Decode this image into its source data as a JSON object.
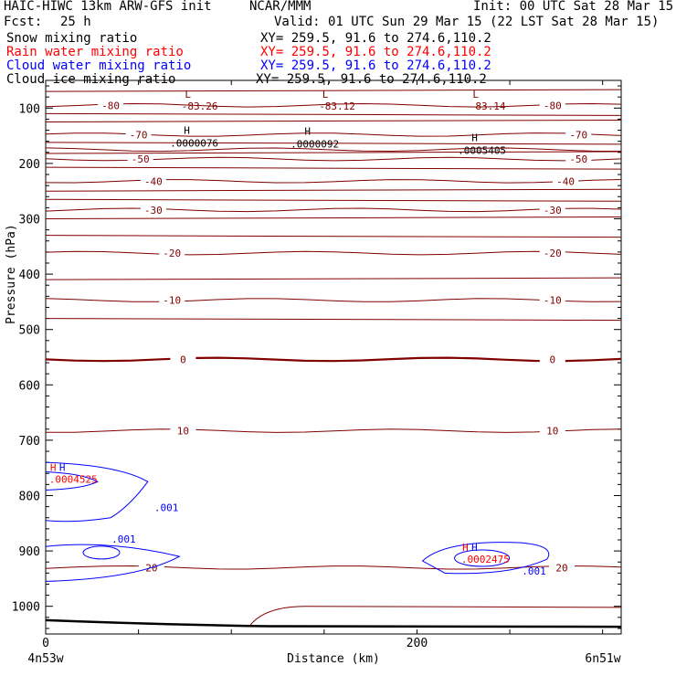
{
  "header": {
    "model": "HAIC-HIWC 13km ARW-GFS init",
    "org": "NCAR/MMM",
    "init": "Init: 00 UTC Sat 28 Mar 15",
    "fcst_label": "Fcst:",
    "fcst_value": "25 h",
    "valid": "Valid: 01 UTC Sun 29 Mar 15 (22 LST Sat 28 Mar 15)"
  },
  "fields": [
    {
      "name": "Snow mixing ratio",
      "xy": "XY= 259.5, 91.6 to 274.6,110.2",
      "color": "#000000"
    },
    {
      "name": "Rain water mixing ratio",
      "xy": "XY= 259.5, 91.6 to 274.6,110.2",
      "color": "#ff0000"
    },
    {
      "name": "Cloud water mixing ratio",
      "xy": "XY= 259.5, 91.6 to 274.6,110.2",
      "color": "#0000ff"
    },
    {
      "name": "Cloud ice mixing ratio",
      "xy": "XY= 259.5, 91.6 to 274.6,110.2",
      "color": "#000000"
    }
  ],
  "chart_data": {
    "type": "contour",
    "xlabel": "Distance (km)",
    "ylabel": "Pressure (hPa)",
    "x_range": [
      0,
      310
    ],
    "y_range": [
      50,
      1050
    ],
    "y_scale": "linear-inverted",
    "x_ticks": [
      {
        "value": 0,
        "label": "0"
      },
      {
        "value": 200,
        "label": "200"
      }
    ],
    "x_minor_step": 50,
    "y_ticks": [
      100,
      200,
      300,
      400,
      500,
      600,
      700,
      800,
      900,
      1000
    ],
    "x_end_labels": {
      "left": "4n53w",
      "right": "6n51w"
    },
    "temperature_color": "#800000",
    "cloud_color": "#0000ff",
    "temperature_contours": [
      {
        "value": -80,
        "p": 95,
        "labels": [
          {
            "text": "-80",
            "x": 35
          },
          {
            "text": "-80",
            "x": 273
          }
        ]
      },
      {
        "value": -70,
        "p": 148,
        "labels": [
          {
            "text": "-70",
            "x": 50
          },
          {
            "text": "-70",
            "x": 287
          }
        ]
      },
      {
        "value": -60,
        "p": 175,
        "labels": []
      },
      {
        "value": -50,
        "p": 192,
        "labels": [
          {
            "text": "-50",
            "x": 51
          },
          {
            "text": "-50",
            "x": 287
          }
        ]
      },
      {
        "value": -40,
        "p": 232,
        "labels": [
          {
            "text": "-40",
            "x": 58
          },
          {
            "text": "-40",
            "x": 280
          }
        ]
      },
      {
        "value": -30,
        "p": 284,
        "labels": [
          {
            "text": "-30",
            "x": 58
          },
          {
            "text": "-30",
            "x": 273
          }
        ]
      },
      {
        "value": -20,
        "p": 362,
        "labels": [
          {
            "text": "-20",
            "x": 68
          },
          {
            "text": "-20",
            "x": 273
          }
        ]
      },
      {
        "value": -10,
        "p": 447,
        "labels": [
          {
            "text": "-10",
            "x": 68
          },
          {
            "text": "-10",
            "x": 273
          }
        ]
      },
      {
        "value": 0,
        "p": 554,
        "labels": [
          {
            "text": "0",
            "x": 74
          },
          {
            "text": "0",
            "x": 273
          }
        ]
      },
      {
        "value": 10,
        "p": 683,
        "labels": [
          {
            "text": "10",
            "x": 74
          },
          {
            "text": "10",
            "x": 273
          }
        ]
      },
      {
        "value": 20,
        "p": 930,
        "labels": [
          {
            "text": "20",
            "x": 57
          },
          {
            "text": "20",
            "x": 278
          }
        ]
      }
    ],
    "temperature_extrema": [
      {
        "kind": "L",
        "x": 83,
        "p": 75,
        "value": "-83.26"
      },
      {
        "kind": "L",
        "x": 157,
        "p": 75,
        "value": "-83.12"
      },
      {
        "kind": "L",
        "x": 238,
        "p": 75,
        "value": "-83.14"
      }
    ],
    "ice_extrema": [
      {
        "kind": "H",
        "x": 80,
        "p": 163,
        "value": ".0000076"
      },
      {
        "kind": "H",
        "x": 145,
        "p": 165,
        "value": ".0000092"
      },
      {
        "kind": "H",
        "x": 235,
        "p": 176,
        "value": ".0005405"
      }
    ],
    "cloud_contour_labels": [
      {
        "text": ".001",
        "x": 65,
        "p": 828
      },
      {
        "text": ".001",
        "x": 42,
        "p": 885
      },
      {
        "text": ".001",
        "x": 263,
        "p": 943
      }
    ],
    "rain_extrema": [
      {
        "kind": "H",
        "x": 7,
        "p": 770,
        "value": ".0004525"
      },
      {
        "kind": "H",
        "x": 229,
        "p": 915,
        "value": ".0002475"
      }
    ]
  }
}
